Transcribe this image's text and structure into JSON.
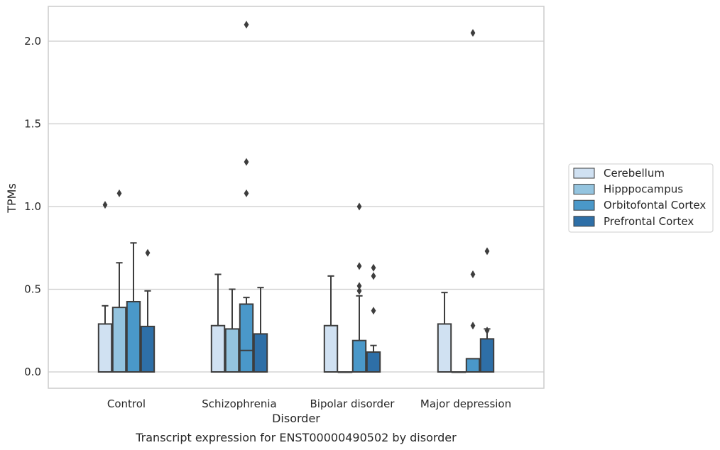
{
  "chart_data": {
    "type": "box",
    "title": "",
    "caption": "Transcript expression for ENST00000490502 by disorder",
    "xlabel": "Disorder",
    "ylabel": "TPMs",
    "ylim": [
      -0.1,
      2.22
    ],
    "yticks": [
      "0.0",
      "0.5",
      "1.0",
      "1.5",
      "2.0"
    ],
    "grid": "horizontal",
    "legend_position": "right",
    "categories": [
      "Control",
      "Schizophrenia",
      "Bipolar disorder",
      "Major depression"
    ],
    "series": [
      {
        "name": "Cerebellum",
        "color": "#d0e1f2",
        "boxes": [
          {
            "q1": 0.0,
            "median": 0.0,
            "q3": 0.29,
            "whisker_low": 0.0,
            "whisker_high": 0.4,
            "outliers": [
              1.01
            ]
          },
          {
            "q1": 0.0,
            "median": 0.0,
            "q3": 0.28,
            "whisker_low": 0.0,
            "whisker_high": 0.59,
            "outliers": []
          },
          {
            "q1": 0.0,
            "median": 0.0,
            "q3": 0.28,
            "whisker_low": 0.0,
            "whisker_high": 0.58,
            "outliers": []
          },
          {
            "q1": 0.0,
            "median": 0.0,
            "q3": 0.29,
            "whisker_low": 0.0,
            "whisker_high": 0.48,
            "outliers": []
          }
        ]
      },
      {
        "name": "Hipppocampus",
        "color": "#94c4df",
        "boxes": [
          {
            "q1": 0.0,
            "median": 0.0,
            "q3": 0.39,
            "whisker_low": 0.0,
            "whisker_high": 0.66,
            "outliers": [
              1.08
            ]
          },
          {
            "q1": 0.0,
            "median": 0.0,
            "q3": 0.26,
            "whisker_low": 0.0,
            "whisker_high": 0.5,
            "outliers": []
          },
          {
            "q1": 0.0,
            "median": 0.0,
            "q3": 0.0,
            "whisker_low": 0.0,
            "whisker_high": 0.0,
            "outliers": []
          },
          {
            "q1": 0.0,
            "median": 0.0,
            "q3": 0.0,
            "whisker_low": 0.0,
            "whisker_high": 0.0,
            "outliers": []
          }
        ]
      },
      {
        "name": "Orbitofontal Cortex",
        "color": "#4a98c9",
        "boxes": [
          {
            "q1": 0.0,
            "median": 0.0,
            "q3": 0.425,
            "whisker_low": 0.0,
            "whisker_high": 0.78,
            "outliers": []
          },
          {
            "q1": 0.0,
            "median": 0.13,
            "q3": 0.41,
            "whisker_low": 0.0,
            "whisker_high": 0.45,
            "outliers": [
              1.08,
              1.27,
              2.1
            ]
          },
          {
            "q1": 0.0,
            "median": 0.0,
            "q3": 0.19,
            "whisker_low": 0.0,
            "whisker_high": 0.46,
            "outliers": [
              0.49,
              0.52,
              0.64,
              1.0
            ]
          },
          {
            "q1": 0.0,
            "median": 0.0,
            "q3": 0.08,
            "whisker_low": 0.0,
            "whisker_high": 0.08,
            "outliers": [
              0.28,
              0.59,
              2.05
            ]
          }
        ]
      },
      {
        "name": "Prefrontal Cortex",
        "color": "#2e6fa7",
        "boxes": [
          {
            "q1": 0.0,
            "median": 0.0,
            "q3": 0.275,
            "whisker_low": 0.0,
            "whisker_high": 0.49,
            "outliers": [
              0.72
            ]
          },
          {
            "q1": 0.0,
            "median": 0.0,
            "q3": 0.23,
            "whisker_low": 0.0,
            "whisker_high": 0.51,
            "outliers": []
          },
          {
            "q1": 0.0,
            "median": 0.0,
            "q3": 0.12,
            "whisker_low": 0.0,
            "whisker_high": 0.16,
            "outliers": [
              0.37,
              0.58,
              0.63
            ]
          },
          {
            "q1": 0.0,
            "median": 0.0,
            "q3": 0.2,
            "whisker_low": 0.0,
            "whisker_high": 0.26,
            "outliers": [
              0.25,
              0.73
            ]
          }
        ]
      }
    ]
  }
}
